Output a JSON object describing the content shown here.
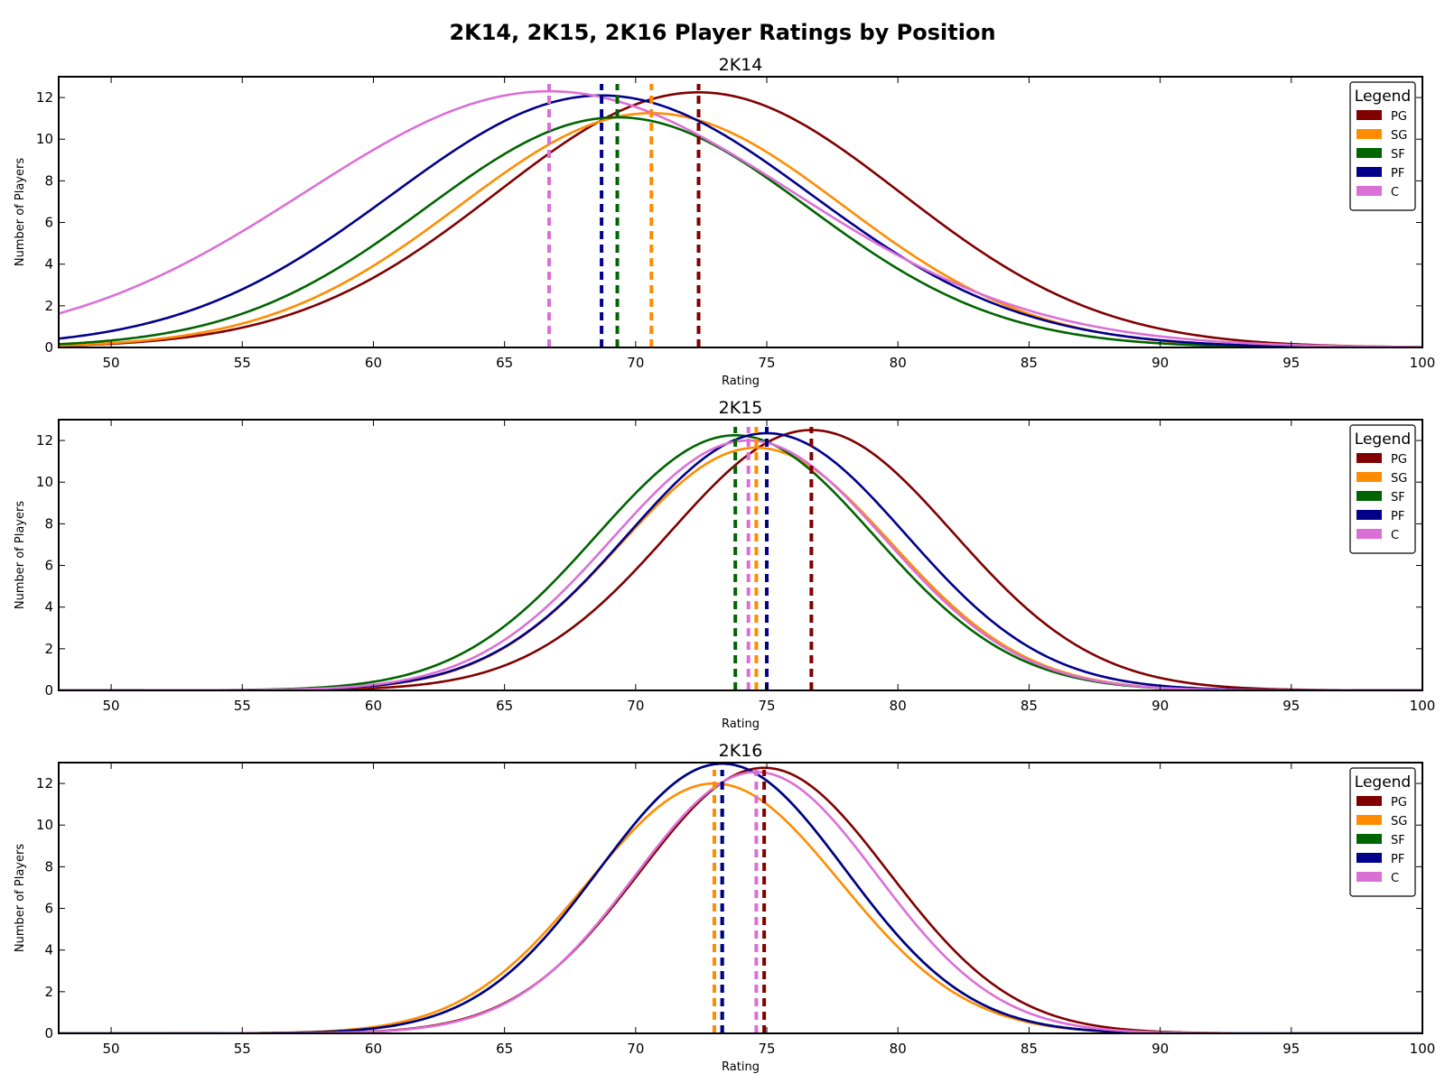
{
  "figure": {
    "title": "2K14, 2K15, 2K16 Player Ratings by Position"
  },
  "chart_data": [
    {
      "type": "line",
      "title": "2K14",
      "xlabel": "Rating",
      "ylabel": "Number of Players",
      "xlim": [
        48,
        100
      ],
      "ylim": [
        0,
        13
      ],
      "xticks": [
        50,
        55,
        60,
        65,
        70,
        75,
        80,
        85,
        90,
        95,
        100
      ],
      "yticks": [
        0,
        2,
        4,
        6,
        8,
        10,
        12
      ],
      "grid": false,
      "legend": {
        "title": "Legend",
        "position": "top-right"
      },
      "series": [
        {
          "name": "PG",
          "color": "#800000",
          "mean": 72.4,
          "sd": 7.7,
          "peak": 12.25
        },
        {
          "name": "SG",
          "color": "#ff8c00",
          "mean": 70.6,
          "sd": 7.3,
          "peak": 11.25
        },
        {
          "name": "SF",
          "color": "#006400",
          "mean": 69.3,
          "sd": 7.3,
          "peak": 11.05
        },
        {
          "name": "PF",
          "color": "#00008b",
          "mean": 68.7,
          "sd": 8.0,
          "peak": 12.1
        },
        {
          "name": "C",
          "color": "#da70d6",
          "mean": 66.7,
          "sd": 9.3,
          "peak": 12.3
        }
      ]
    },
    {
      "type": "line",
      "title": "2K15",
      "xlabel": "Rating",
      "ylabel": "Number of Players",
      "xlim": [
        48,
        100
      ],
      "ylim": [
        0,
        13
      ],
      "xticks": [
        50,
        55,
        60,
        65,
        70,
        75,
        80,
        85,
        90,
        95,
        100
      ],
      "yticks": [
        0,
        2,
        4,
        6,
        8,
        10,
        12
      ],
      "grid": false,
      "legend": {
        "title": "Legend",
        "position": "top-right"
      },
      "series": [
        {
          "name": "PG",
          "color": "#800000",
          "mean": 76.7,
          "sd": 5.4,
          "peak": 12.5
        },
        {
          "name": "SG",
          "color": "#ff8c00",
          "mean": 74.6,
          "sd": 5.15,
          "peak": 11.65
        },
        {
          "name": "SF",
          "color": "#006400",
          "mean": 73.8,
          "sd": 5.3,
          "peak": 12.25
        },
        {
          "name": "PF",
          "color": "#00008b",
          "mean": 75.0,
          "sd": 5.3,
          "peak": 12.35
        },
        {
          "name": "C",
          "color": "#da70d6",
          "mean": 74.3,
          "sd": 5.2,
          "peak": 12.0
        }
      ]
    },
    {
      "type": "line",
      "title": "2K16",
      "xlabel": "Rating",
      "ylabel": "Number of Players",
      "xlim": [
        48,
        100
      ],
      "ylim": [
        0,
        13
      ],
      "xticks": [
        50,
        55,
        60,
        65,
        70,
        75,
        80,
        85,
        90,
        95,
        100
      ],
      "yticks": [
        0,
        2,
        4,
        6,
        8,
        10,
        12
      ],
      "grid": false,
      "legend": {
        "title": "Legend",
        "position": "top-right"
      },
      "series": [
        {
          "name": "PG",
          "color": "#800000",
          "mean": 74.9,
          "sd": 4.75,
          "peak": 12.75
        },
        {
          "name": "SG",
          "color": "#ff8c00",
          "mean": 73.0,
          "sd": 4.8,
          "peak": 12.0
        },
        {
          "name": "SF",
          "color": "#006400",
          "mean": 73.3,
          "sd": 4.7,
          "peak": 12.95
        },
        {
          "name": "PF",
          "color": "#00008b",
          "mean": 73.3,
          "sd": 4.7,
          "peak": 12.95
        },
        {
          "name": "C",
          "color": "#da70d6",
          "mean": 74.6,
          "sd": 4.6,
          "peak": 12.55
        }
      ]
    }
  ]
}
